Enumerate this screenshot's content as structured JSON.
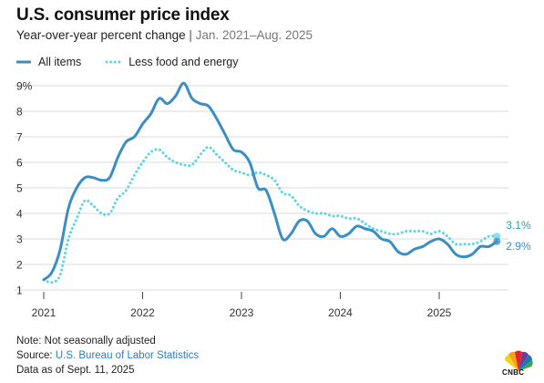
{
  "header": {
    "title": "U.S. consumer price index",
    "subtitle_main": "Year-over-year percent change",
    "subtitle_sep": "|",
    "subtitle_range": "Jan. 2021–Aug. 2025"
  },
  "footer": {
    "note": "Note: Not seasonally adjusted",
    "source_prefix": "Source: ",
    "source_link": "U.S. Bureau of Labor Statistics",
    "as_of": "Data as of Sept. 11, 2025"
  },
  "logo": {
    "text": "CNBC",
    "icon": "cnbc-peacock-logo"
  },
  "colors": {
    "all_items": "#3a8ec4",
    "core": "#5fd6e6",
    "grid": "#d9d9d9",
    "tick_text": "#333333"
  },
  "chart_data": {
    "type": "line",
    "ylim": [
      1,
      9
    ],
    "xlim": [
      2021.0,
      2025.75
    ],
    "y_ticks": [
      {
        "value": 1,
        "label": "1"
      },
      {
        "value": 2,
        "label": "2"
      },
      {
        "value": 3,
        "label": "3"
      },
      {
        "value": 4,
        "label": "4"
      },
      {
        "value": 5,
        "label": "5"
      },
      {
        "value": 6,
        "label": "6"
      },
      {
        "value": 7,
        "label": "7"
      },
      {
        "value": 8,
        "label": "8"
      },
      {
        "value": 9,
        "label": "9%"
      }
    ],
    "x_ticks": [
      {
        "value": 2021,
        "label": "2021"
      },
      {
        "value": 2022,
        "label": "2022"
      },
      {
        "value": 2023,
        "label": "2023"
      },
      {
        "value": 2024,
        "label": "2024"
      },
      {
        "value": 2025,
        "label": "2025"
      }
    ],
    "grid": "horizontal",
    "legend_position": "top-left",
    "series": [
      {
        "name": "All items",
        "style": "solid",
        "end_label": "2.9%",
        "values": [
          1.4,
          1.7,
          2.6,
          4.2,
          5.0,
          5.4,
          5.4,
          5.3,
          5.4,
          6.2,
          6.8,
          7.0,
          7.5,
          7.9,
          8.5,
          8.3,
          8.6,
          9.1,
          8.5,
          8.3,
          8.2,
          7.7,
          7.1,
          6.5,
          6.4,
          6.0,
          5.0,
          4.9,
          4.0,
          3.0,
          3.2,
          3.7,
          3.7,
          3.2,
          3.1,
          3.4,
          3.1,
          3.2,
          3.5,
          3.4,
          3.3,
          3.0,
          2.9,
          2.5,
          2.4,
          2.6,
          2.7,
          2.9,
          3.0,
          2.8,
          2.4,
          2.3,
          2.4,
          2.7,
          2.7,
          2.9
        ]
      },
      {
        "name": "Less food and energy",
        "style": "dotted",
        "end_label": "3.1%",
        "values": [
          1.4,
          1.3,
          1.6,
          3.0,
          3.8,
          4.5,
          4.3,
          4.0,
          4.0,
          4.6,
          4.9,
          5.5,
          6.0,
          6.4,
          6.5,
          6.2,
          6.0,
          5.9,
          5.9,
          6.3,
          6.6,
          6.3,
          6.0,
          5.7,
          5.6,
          5.5,
          5.6,
          5.5,
          5.3,
          4.8,
          4.7,
          4.3,
          4.1,
          4.0,
          4.0,
          3.9,
          3.9,
          3.8,
          3.8,
          3.6,
          3.4,
          3.3,
          3.2,
          3.2,
          3.3,
          3.3,
          3.3,
          3.2,
          3.3,
          3.1,
          2.8,
          2.8,
          2.8,
          2.9,
          3.1,
          3.1
        ]
      }
    ]
  }
}
